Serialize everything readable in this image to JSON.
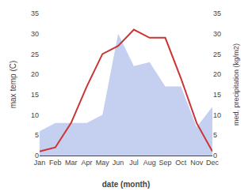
{
  "chart_data": {
    "type": "line",
    "categories": [
      "Jan",
      "Feb",
      "Mar",
      "Apr",
      "May",
      "Jun",
      "Jul",
      "Aug",
      "Sep",
      "Oct",
      "Nov",
      "Dec"
    ],
    "series": [
      {
        "type": "area",
        "color": "#c5cff0",
        "values": [
          6,
          8,
          8,
          8,
          10,
          30,
          22,
          23,
          17,
          17,
          7,
          12
        ]
      },
      {
        "type": "line",
        "color": "#cc3333",
        "values": [
          1,
          2,
          8,
          17,
          25,
          27,
          31,
          29,
          29,
          19,
          8,
          1
        ]
      }
    ],
    "xlabel": "date (month)",
    "ylabel": "max temp (C)",
    "y2label": "med. precipitation (kg/m2)",
    "ylim": [
      0,
      35
    ],
    "yticks": [
      0,
      5,
      10,
      15,
      20,
      25,
      30,
      35
    ],
    "y2lim": [
      0,
      35
    ],
    "y2ticks": [
      0,
      5,
      10,
      15,
      20,
      25,
      30,
      35
    ],
    "grid": false
  }
}
